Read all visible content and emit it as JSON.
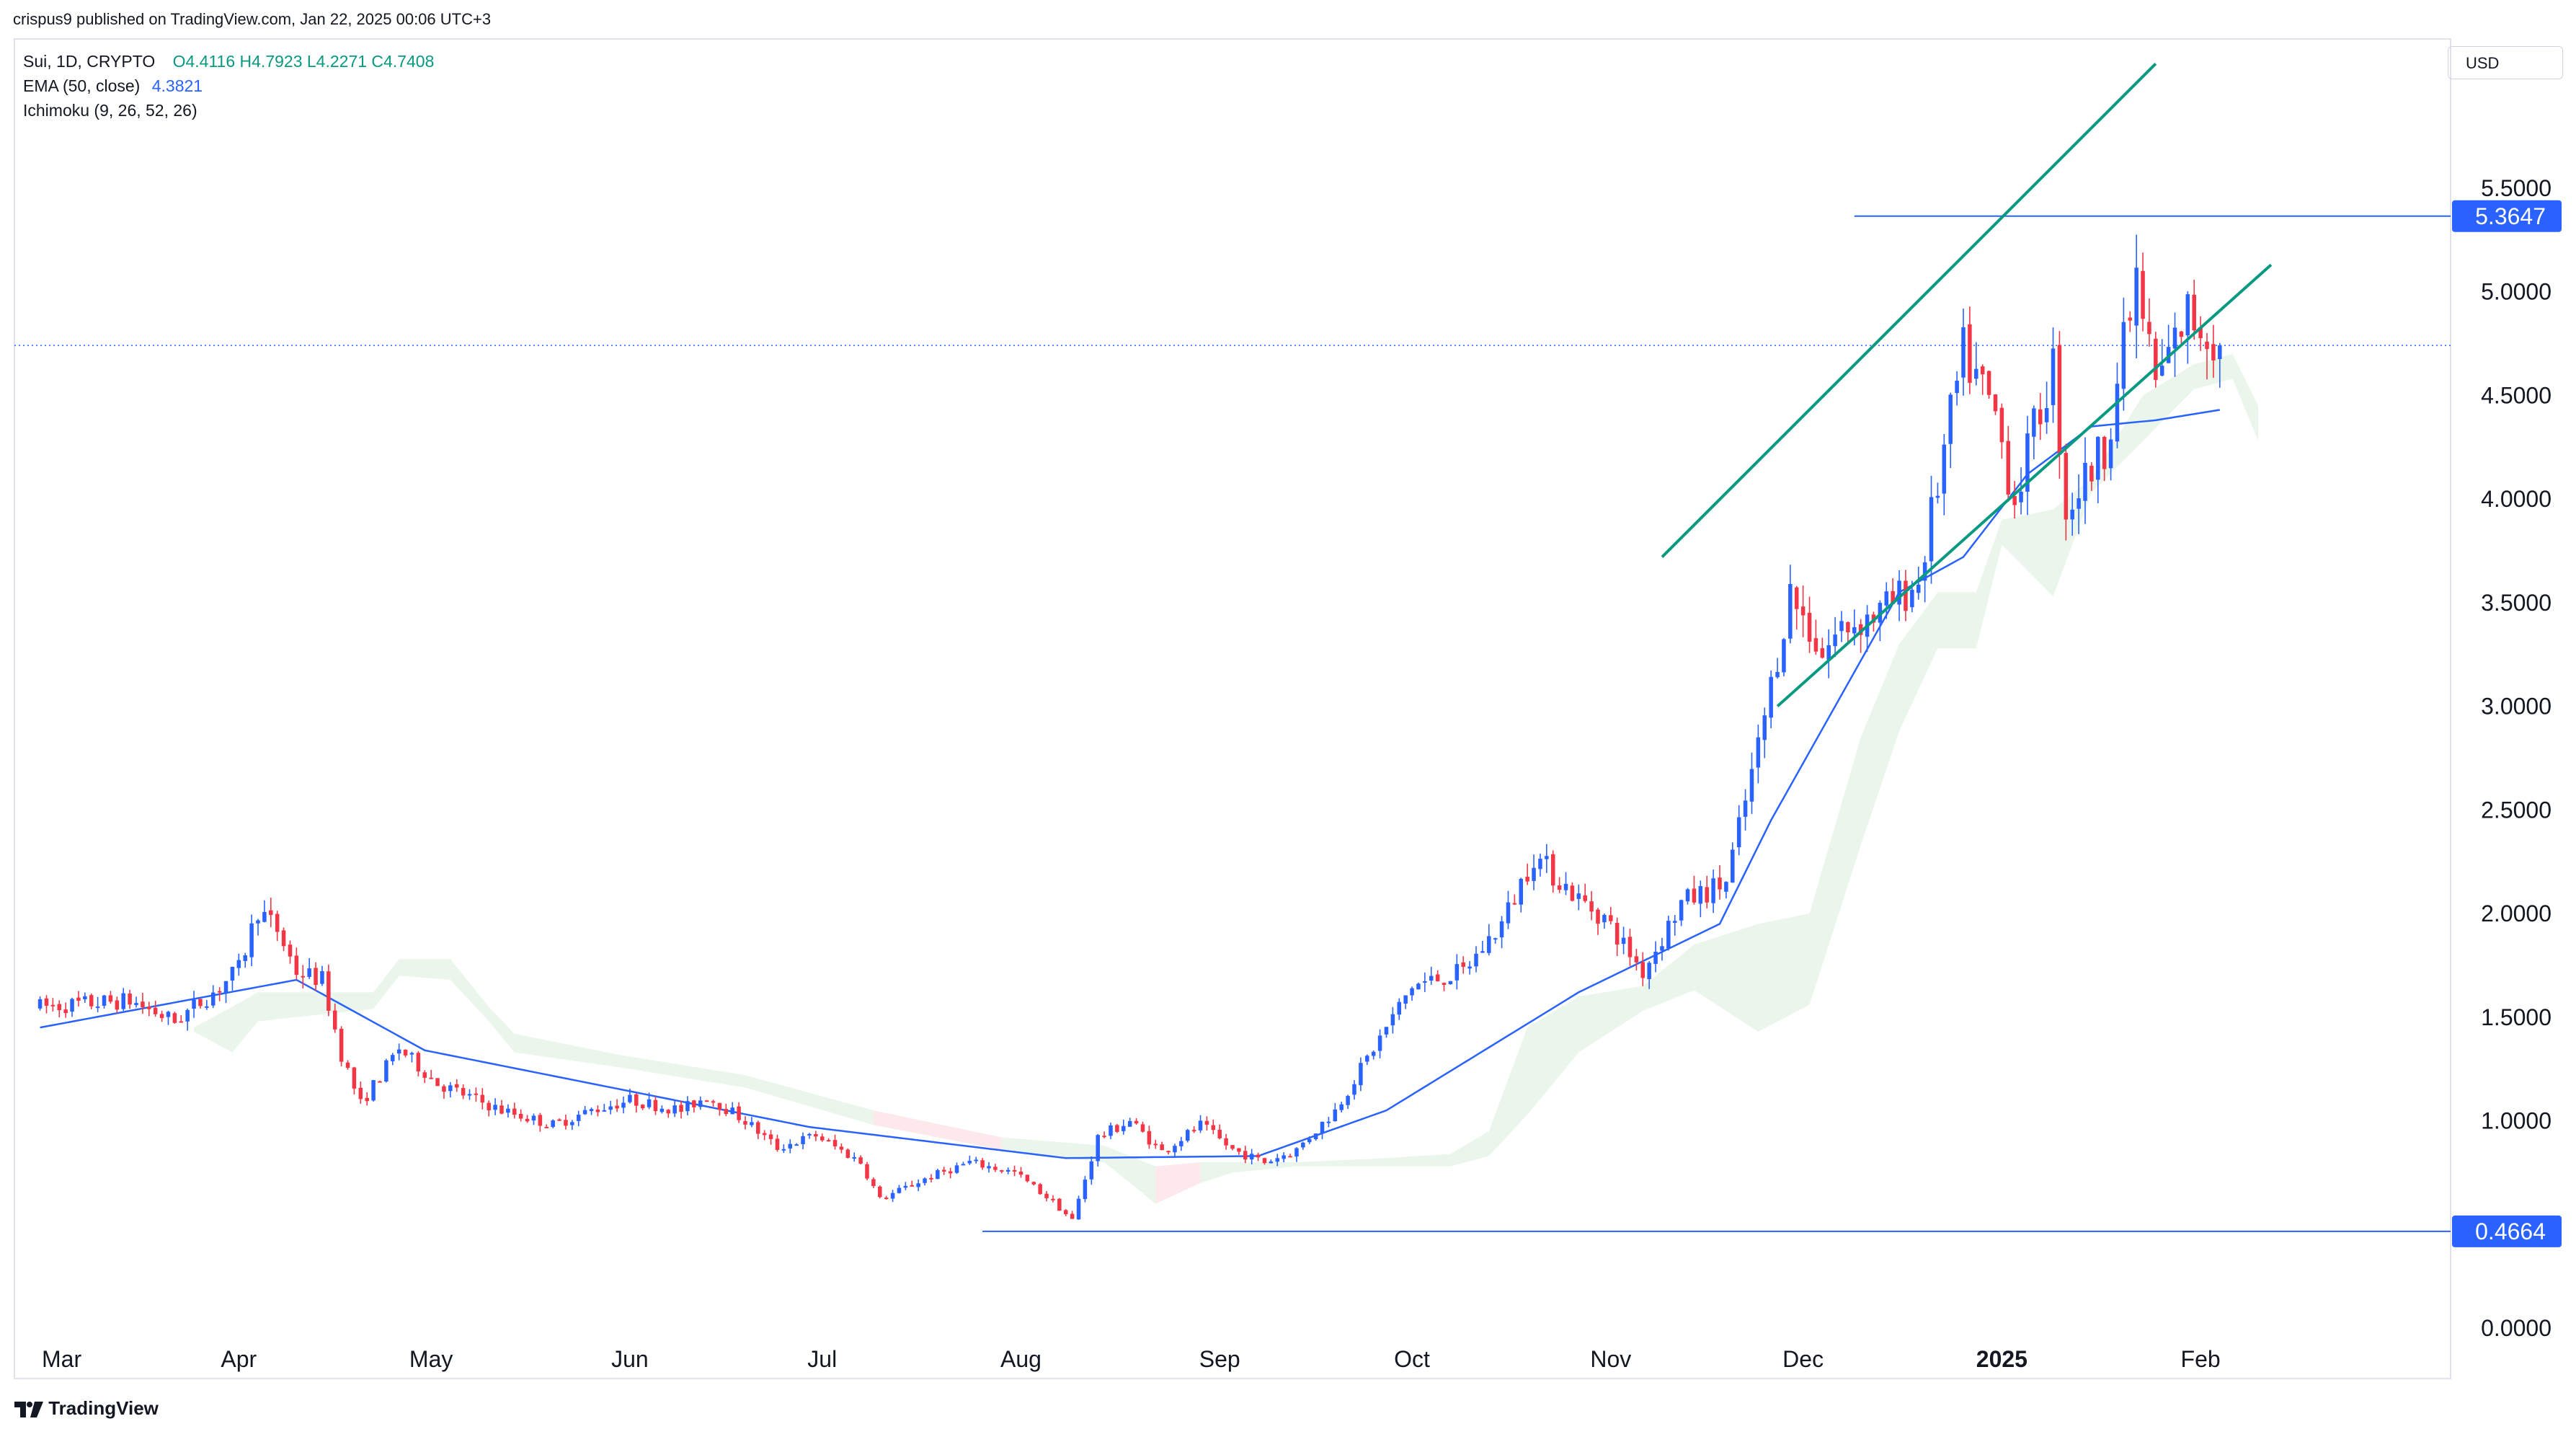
{
  "header": {
    "author": "crispus9",
    "published_text": "crispus9 published on TradingView.com, Jan 22, 2025 00:06 UTC+3"
  },
  "legend": {
    "symbol": "Sui, 1D, CRYPTO",
    "open": "O4.4116",
    "high": "H4.7923",
    "low": "L4.2271",
    "close": "C4.7408",
    "ema_label": "EMA (50, close)",
    "ema_value": "4.3821",
    "ichimoku_label": "Ichimoku (9, 26, 52, 26)"
  },
  "currency": "USD",
  "footer": {
    "brand": "TradingView"
  },
  "colors": {
    "up": "#2962ff",
    "down": "#f23645",
    "ema": "#2962ff",
    "channel": "#089981",
    "cloud_bull": "#e8f5e9",
    "cloud_bear": "#fde7e9",
    "hline": "#2962ff",
    "dotted": "#2962ff"
  },
  "chart_data": {
    "type": "candlestick",
    "y_axis": {
      "ticks": [
        "0.0000",
        "1.0000",
        "1.5000",
        "2.0000",
        "2.5000",
        "3.0000",
        "3.5000",
        "4.0000",
        "4.5000",
        "5.0000",
        "5.5000"
      ],
      "tick_values": [
        0,
        1.0,
        1.5,
        2.0,
        2.5,
        3.0,
        3.5,
        4.0,
        4.5,
        5.0,
        5.5
      ],
      "range": [
        0,
        6.15
      ]
    },
    "x_axis": {
      "ticks": [
        "Mar",
        "Apr",
        "May",
        "Jun",
        "Jul",
        "Aug",
        "Sep",
        "Oct",
        "Nov",
        "Dec",
        "2025",
        "Feb"
      ],
      "bold_tick": "2025",
      "range_days": [
        -4,
        376
      ]
    },
    "price_tags": [
      {
        "label": "5.3647",
        "value": 5.3647
      },
      {
        "label": "0.4664",
        "value": 0.4664
      }
    ],
    "current_price_line": 4.7408,
    "channel_upper": {
      "from": [
        253,
        3.72
      ],
      "to": [
        330,
        6.1
      ]
    },
    "channel_lower": {
      "from": [
        271,
        3.0
      ],
      "to": [
        348,
        5.13
      ]
    },
    "anchors": [
      [
        0,
        1.55
      ],
      [
        14,
        1.58
      ],
      [
        21,
        1.48
      ],
      [
        27,
        1.62
      ],
      [
        31,
        1.73
      ],
      [
        34,
        2.02
      ],
      [
        37,
        1.92
      ],
      [
        40,
        1.72
      ],
      [
        44,
        1.68
      ],
      [
        47,
        1.32
      ],
      [
        50,
        1.08
      ],
      [
        56,
        1.35
      ],
      [
        62,
        1.18
      ],
      [
        72,
        1.05
      ],
      [
        80,
        0.98
      ],
      [
        86,
        1.05
      ],
      [
        92,
        1.1
      ],
      [
        100,
        1.05
      ],
      [
        104,
        1.12
      ],
      [
        110,
        1.0
      ],
      [
        115,
        0.87
      ],
      [
        121,
        0.93
      ],
      [
        128,
        0.8
      ],
      [
        131,
        0.62
      ],
      [
        138,
        0.72
      ],
      [
        145,
        0.8
      ],
      [
        152,
        0.75
      ],
      [
        158,
        0.61
      ],
      [
        161,
        0.52
      ],
      [
        165,
        0.92
      ],
      [
        170,
        1.0
      ],
      [
        175,
        0.85
      ],
      [
        181,
        0.98
      ],
      [
        186,
        0.86
      ],
      [
        191,
        0.8
      ],
      [
        196,
        0.86
      ],
      [
        202,
        1.05
      ],
      [
        208,
        1.35
      ],
      [
        214,
        1.65
      ],
      [
        222,
        1.72
      ],
      [
        228,
        1.95
      ],
      [
        233,
        2.28
      ],
      [
        240,
        2.07
      ],
      [
        244,
        1.98
      ],
      [
        250,
        1.72
      ],
      [
        256,
        2.05
      ],
      [
        263,
        2.15
      ],
      [
        268,
        2.8
      ],
      [
        273,
        3.55
      ],
      [
        278,
        3.25
      ],
      [
        281,
        3.38
      ],
      [
        287,
        3.45
      ],
      [
        293,
        3.6
      ],
      [
        300,
        4.7
      ],
      [
        305,
        4.4
      ],
      [
        308,
        4.0
      ],
      [
        314,
        4.65
      ],
      [
        316,
        3.95
      ],
      [
        322,
        4.25
      ],
      [
        327,
        5.05
      ],
      [
        330,
        4.55
      ],
      [
        335,
        4.9
      ],
      [
        340,
        4.74
      ]
    ],
    "ema50_anchors": [
      [
        0,
        1.45
      ],
      [
        40,
        1.68
      ],
      [
        60,
        1.34
      ],
      [
        120,
        0.97
      ],
      [
        160,
        0.82
      ],
      [
        190,
        0.83
      ],
      [
        210,
        1.05
      ],
      [
        240,
        1.62
      ],
      [
        262,
        1.95
      ],
      [
        270,
        2.45
      ],
      [
        290,
        3.55
      ],
      [
        300,
        3.72
      ],
      [
        310,
        4.12
      ],
      [
        320,
        4.35
      ],
      [
        330,
        4.38
      ],
      [
        340,
        4.43
      ]
    ],
    "cloud": [
      [
        [
          24,
          1.45
        ],
        [
          26,
          1.45
        ]
      ],
      [
        [
          30,
          1.35
        ],
        [
          32,
          1.55
        ]
      ],
      [
        [
          34,
          1.5
        ],
        [
          36,
          1.62
        ]
      ],
      [
        [
          52,
          1.56
        ],
        [
          54,
          1.62
        ]
      ],
      [
        [
          56,
          1.72
        ],
        [
          58,
          1.78
        ]
      ],
      [
        [
          64,
          1.7
        ],
        [
          66,
          1.78
        ]
      ],
      [
        [
          70,
          1.5
        ],
        [
          72,
          1.55
        ]
      ],
      [
        [
          74,
          1.35
        ],
        [
          76,
          1.42
        ]
      ],
      [
        [
          90,
          1.28
        ],
        [
          92,
          1.32
        ]
      ],
      [
        [
          110,
          1.18
        ],
        [
          112,
          1.22
        ]
      ],
      [
        [
          130,
          1.05
        ],
        [
          132,
          1.0
        ]
      ],
      [
        [
          150,
          0.88
        ],
        [
          152,
          0.92
        ]
      ],
      [
        [
          166,
          0.82
        ],
        [
          168,
          0.88
        ]
      ],
      [
        [
          174,
          0.78
        ],
        [
          176,
          0.62
        ]
      ],
      [
        [
          181,
          0.72
        ],
        [
          183,
          0.8
        ]
      ],
      [
        [
          186,
          0.77
        ],
        [
          188,
          0.8
        ]
      ],
      [
        [
          196,
          0.8
        ],
        [
          198,
          0.8
        ]
      ],
      [
        [
          210,
          0.8
        ],
        [
          212,
          0.82
        ]
      ],
      [
        [
          220,
          0.8
        ],
        [
          222,
          0.84
        ]
      ],
      [
        [
          226,
          0.85
        ],
        [
          228,
          0.95
        ]
      ],
      [
        [
          232,
          1.05
        ],
        [
          234,
          1.45
        ]
      ],
      [
        [
          240,
          1.35
        ],
        [
          242,
          1.6
        ]
      ],
      [
        [
          250,
          1.55
        ],
        [
          252,
          1.65
        ]
      ],
      [
        [
          258,
          1.65
        ],
        [
          260,
          1.85
        ]
      ],
      [
        [
          268,
          1.45
        ],
        [
          270,
          1.95
        ]
      ],
      [
        [
          276,
          1.58
        ],
        [
          278,
          2.0
        ]
      ],
      [
        [
          284,
          2.35
        ],
        [
          286,
          2.85
        ]
      ],
      [
        [
          290,
          2.9
        ],
        [
          292,
          3.3
        ]
      ],
      [
        [
          296,
          3.3
        ],
        [
          298,
          3.55
        ]
      ],
      [
        [
          302,
          3.3
        ],
        [
          304,
          3.55
        ]
      ],
      [
        [
          306,
          3.8
        ],
        [
          308,
          3.9
        ]
      ],
      [
        [
          314,
          3.55
        ],
        [
          316,
          3.95
        ]
      ],
      [
        [
          320,
          4.05
        ],
        [
          322,
          4.1
        ]
      ],
      [
        [
          328,
          4.3
        ],
        [
          330,
          4.5
        ]
      ],
      [
        [
          336,
          4.55
        ],
        [
          338,
          4.65
        ]
      ],
      [
        [
          342,
          4.7
        ],
        [
          344,
          4.6
        ]
      ],
      [
        [
          346,
          4.3
        ],
        [
          348,
          4.45
        ]
      ]
    ]
  }
}
